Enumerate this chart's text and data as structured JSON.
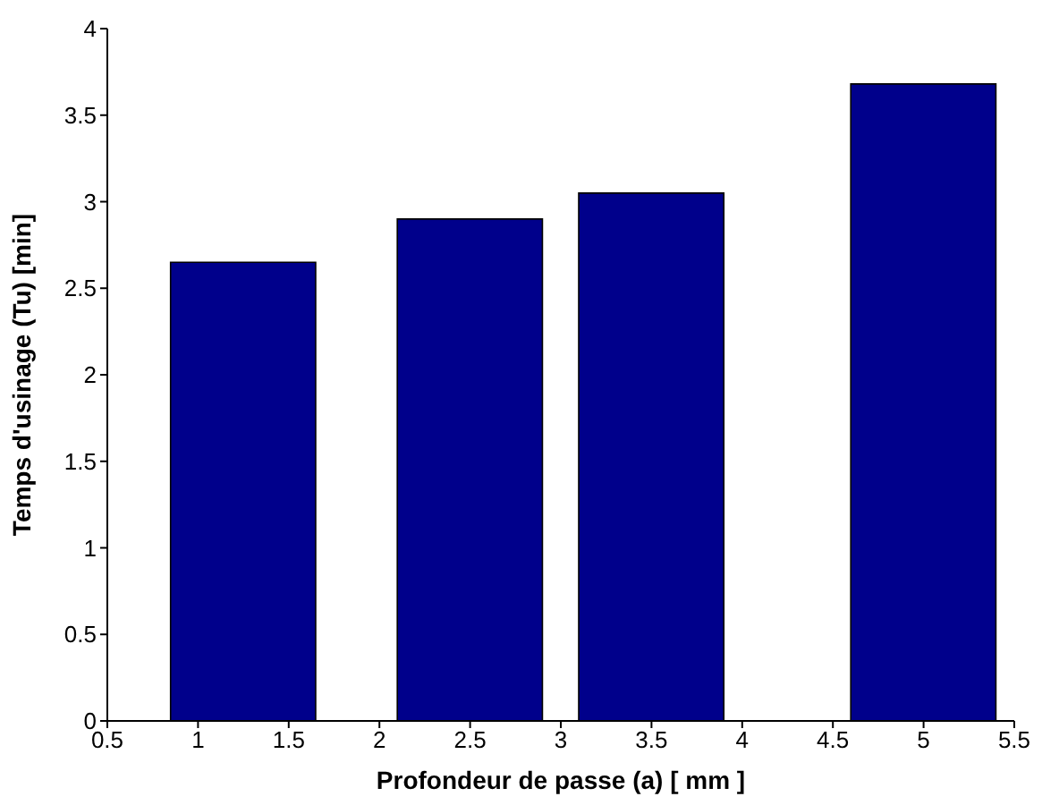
{
  "chart_data": {
    "type": "bar",
    "xlabel": "Profondeur de passe (a) [ mm ]",
    "ylabel": "Temps d'usinage (Tu) [min]",
    "x": [
      1.25,
      2.5,
      3.5,
      5
    ],
    "values": [
      2.65,
      2.9,
      3.05,
      3.68
    ],
    "color": "#00008b",
    "xlim": [
      0.5,
      5.5
    ],
    "xticks": [
      0.5,
      1,
      1.5,
      2,
      2.5,
      3,
      3.5,
      4,
      4.5,
      5,
      5.5
    ],
    "ylim": [
      0,
      4
    ],
    "yticks": [
      0,
      0.5,
      1,
      1.5,
      2,
      2.5,
      3,
      3.5,
      4
    ],
    "grid": false
  }
}
